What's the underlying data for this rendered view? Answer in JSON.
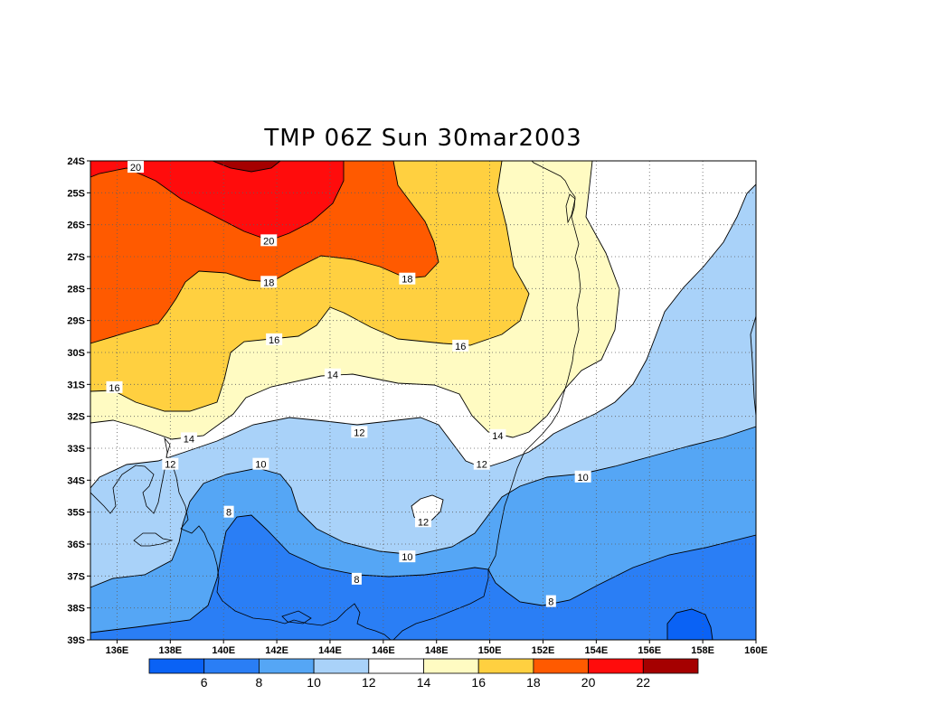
{
  "title": "TMP 06Z Sun 30mar2003",
  "variable": "TMP",
  "map": {
    "lat_labels": [
      "24S",
      "25S",
      "26S",
      "27S",
      "28S",
      "29S",
      "30S",
      "31S",
      "32S",
      "33S",
      "34S",
      "35S",
      "36S",
      "37S",
      "38S",
      "39S"
    ],
    "lon_labels": [
      "136E",
      "138E",
      "140E",
      "142E",
      "144E",
      "146E",
      "148E",
      "150E",
      "152E",
      "154E",
      "156E",
      "158E",
      "160E"
    ],
    "lat_range": [
      -39,
      -24
    ],
    "lon_range": [
      135,
      160
    ],
    "grid": "dotted",
    "contour_labels": [
      {
        "text": "20",
        "lon": 136.7,
        "lat": -24.2
      },
      {
        "text": "20",
        "lon": 141.7,
        "lat": -26.5
      },
      {
        "text": "18",
        "lon": 141.7,
        "lat": -27.8
      },
      {
        "text": "18",
        "lon": 146.9,
        "lat": -27.7
      },
      {
        "text": "16",
        "lon": 141.9,
        "lat": -29.6
      },
      {
        "text": "16",
        "lon": 148.9,
        "lat": -29.8
      },
      {
        "text": "16",
        "lon": 135.9,
        "lat": -31.1
      },
      {
        "text": "14",
        "lon": 144.1,
        "lat": -30.7
      },
      {
        "text": "14",
        "lon": 138.7,
        "lat": -32.7
      },
      {
        "text": "14",
        "lon": 150.3,
        "lat": -32.6
      },
      {
        "text": "12",
        "lon": 145.1,
        "lat": -32.5
      },
      {
        "text": "12",
        "lon": 138.0,
        "lat": -33.5
      },
      {
        "text": "12",
        "lon": 149.7,
        "lat": -33.5
      },
      {
        "text": "12",
        "lon": 147.5,
        "lat": -35.3
      },
      {
        "text": "10",
        "lon": 141.4,
        "lat": -33.5
      },
      {
        "text": "10",
        "lon": 153.5,
        "lat": -33.9
      },
      {
        "text": "10",
        "lon": 146.9,
        "lat": -36.4
      },
      {
        "text": "8",
        "lon": 140.2,
        "lat": -35.0
      },
      {
        "text": "8",
        "lon": 145.0,
        "lat": -37.1
      },
      {
        "text": "8",
        "lon": 152.3,
        "lat": -37.8
      }
    ]
  },
  "colorbar": {
    "levels": [
      "6",
      "8",
      "10",
      "12",
      "14",
      "16",
      "18",
      "20",
      "22"
    ],
    "colors": [
      "#0a62f5",
      "#2a7ef5",
      "#55a6f5",
      "#a9d2f9",
      "#ffffff",
      "#fffbc2",
      "#ffd040",
      "#ff5a00",
      "#ff0c0c",
      "#a50000"
    ]
  },
  "fill_colors": {
    "lt6": "#0a62f5",
    "6_8": "#2a7ef5",
    "8_10": "#55a6f5",
    "10_12": "#a9d2f9",
    "12_14": "#ffffff",
    "14_16": "#fffbc2",
    "16_18": "#ffd040",
    "18_20": "#ff5a00",
    "20_22": "#ff0c0c",
    "gt22": "#a50000"
  }
}
